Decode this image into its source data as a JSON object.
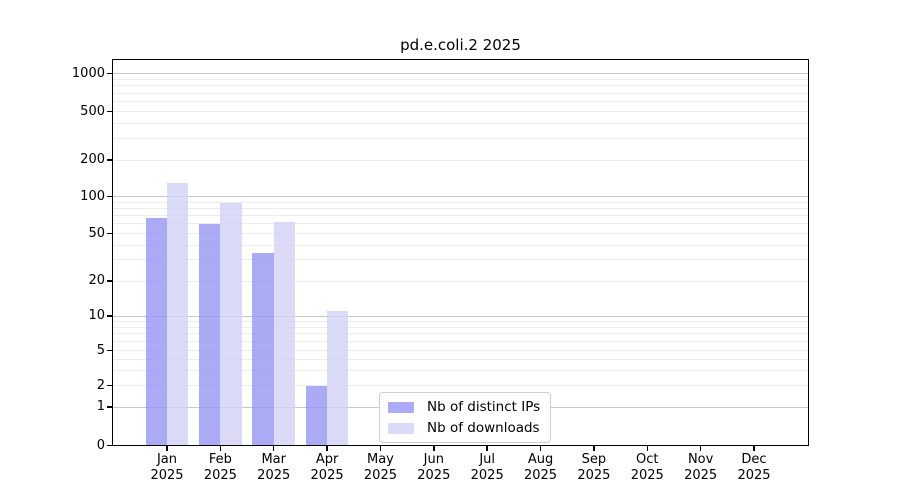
{
  "chart_data": {
    "type": "bar",
    "title": "pd.e.coli.2 2025",
    "x_months": [
      "Jan",
      "Feb",
      "Mar",
      "Apr",
      "May",
      "Jun",
      "Jul",
      "Aug",
      "Sep",
      "Oct",
      "Nov",
      "Dec"
    ],
    "x_year": "2025",
    "y_ticks": [
      0,
      1,
      2,
      5,
      10,
      20,
      50,
      100,
      200,
      500,
      1000
    ],
    "y_scale": "log-like (compressed near zero)",
    "ylim": [
      0,
      1000
    ],
    "grid": "horizontal major and minor gridlines",
    "legend_position": "bottom center-left inside plot",
    "series": [
      {
        "name": "Nb of distinct IPs",
        "color": "#9595f3",
        "values": [
          67,
          60,
          34,
          2,
          0,
          0,
          0,
          0,
          0,
          0,
          0,
          0
        ]
      },
      {
        "name": "Nb of downloads",
        "color": "#d2d2f6",
        "values": [
          130,
          89,
          62,
          11,
          0,
          0,
          0,
          0,
          0,
          0,
          0,
          0
        ]
      }
    ],
    "bar_alpha": 0.8,
    "colors": {
      "grid_major": "#c8c8c8",
      "grid_minor": "#ececec",
      "axis": "#000000",
      "background": "#ffffff"
    }
  }
}
